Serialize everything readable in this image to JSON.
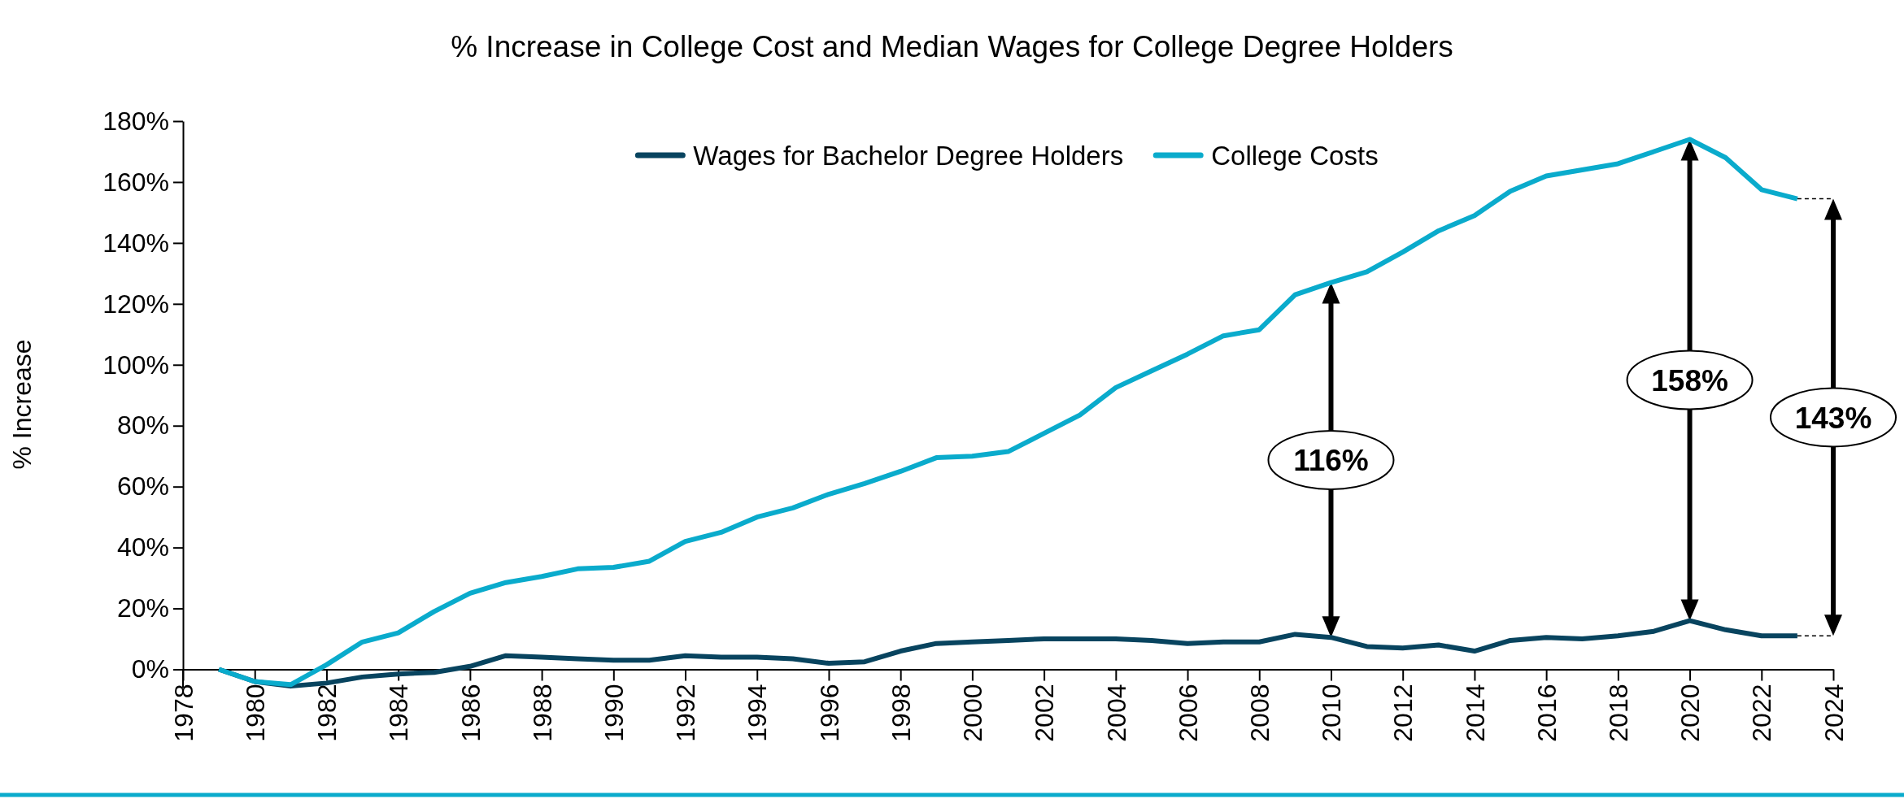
{
  "chart_data": {
    "type": "line",
    "title": "% Increase in College Cost and Median Wages for College Degree Holders",
    "ylabel": "% Increase",
    "x": [
      1979,
      1980,
      1981,
      1982,
      1983,
      1984,
      1985,
      1986,
      1987,
      1988,
      1989,
      1990,
      1991,
      1992,
      1993,
      1994,
      1995,
      1996,
      1997,
      1998,
      1999,
      2000,
      2001,
      2002,
      2003,
      2004,
      2005,
      2006,
      2007,
      2008,
      2009,
      2010,
      2011,
      2012,
      2013,
      2014,
      2015,
      2016,
      2017,
      2018,
      2019,
      2020,
      2021,
      2022,
      2023
    ],
    "series": [
      {
        "name": "Wages for Bachelor Degree Holders",
        "color": "#08445f",
        "values": [
          0,
          -4,
          -5.5,
          -4.5,
          -2.5,
          -1.5,
          -1,
          1,
          4.5,
          4,
          3.5,
          3,
          3,
          4.5,
          4,
          4,
          3.5,
          2,
          2.5,
          6,
          8.5,
          9,
          9.5,
          10,
          10,
          10,
          9.5,
          8.5,
          9,
          9,
          11.5,
          10.5,
          7.5,
          7,
          8,
          6,
          9.5,
          10.5,
          10,
          11,
          12.5,
          16,
          13,
          11,
          11
        ]
      },
      {
        "name": "College Costs",
        "color": "#0aabcc",
        "values": [
          0,
          -4,
          -5,
          1.5,
          9,
          12,
          19,
          25,
          28.5,
          30.5,
          33,
          33.5,
          35.5,
          42,
          45,
          50,
          53,
          57.5,
          61,
          65,
          69.5,
          70,
          71.5,
          77.5,
          83.5,
          92.5,
          98,
          103.5,
          109.5,
          111.5,
          123,
          127,
          130.5,
          137,
          144,
          149,
          157,
          162,
          164,
          166,
          170,
          174,
          168,
          157.5,
          154.5
        ]
      }
    ],
    "xlim": [
      1978,
      2024
    ],
    "xticks": [
      1978,
      1980,
      1982,
      1984,
      1986,
      1988,
      1990,
      1992,
      1994,
      1996,
      1998,
      2000,
      2002,
      2004,
      2006,
      2008,
      2010,
      2012,
      2014,
      2016,
      2018,
      2020,
      2022,
      2024
    ],
    "ylim": [
      -6,
      180
    ],
    "yticks": [
      {
        "value": 0,
        "label": "0%"
      },
      {
        "value": 20,
        "label": "20%"
      },
      {
        "value": 40,
        "label": "40%"
      },
      {
        "value": 60,
        "label": "60%"
      },
      {
        "value": 80,
        "label": "80%"
      },
      {
        "value": 100,
        "label": "100%"
      },
      {
        "value": 120,
        "label": "120%"
      },
      {
        "value": 140,
        "label": "140%"
      },
      {
        "value": 160,
        "label": "160%"
      },
      {
        "value": 180,
        "label": "180%"
      }
    ],
    "annotations": [
      "116%",
      "158%",
      "143%"
    ],
    "legend": "top",
    "grid": false,
    "marker": "none",
    "line_style": "solid"
  }
}
